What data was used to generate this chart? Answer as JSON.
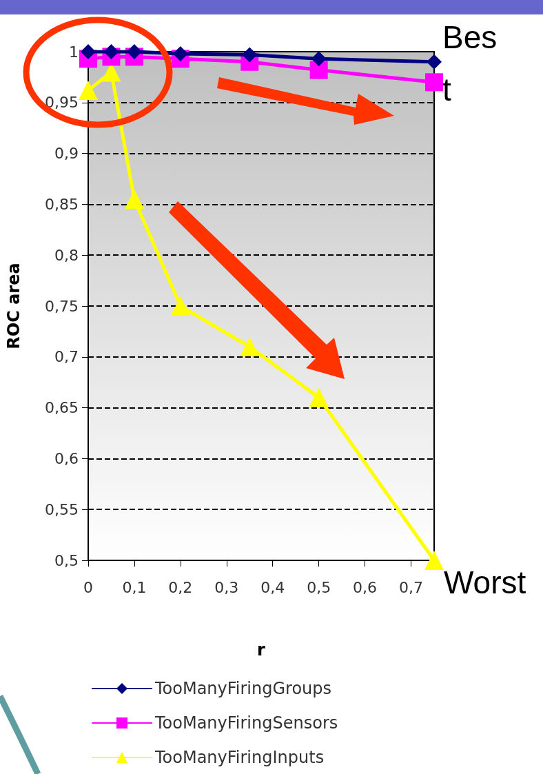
{
  "chart_data": {
    "type": "line",
    "xlabel": "r",
    "ylabel": "ROC area",
    "xlim": [
      0,
      0.75
    ],
    "ylim": [
      0.5,
      1
    ],
    "xticks": [
      0,
      {
        "value": 0.1,
        "label": "0,1"
      },
      {
        "value": 0.2,
        "label": "0,2"
      },
      {
        "value": 0.3,
        "label": "0,3"
      },
      {
        "value": 0.4,
        "label": "0,4"
      },
      {
        "value": 0.5,
        "label": "0,5"
      },
      {
        "value": 0.6,
        "label": "0,6"
      },
      {
        "value": 0.7,
        "label": "0,7"
      }
    ],
    "yticks": [
      {
        "value": 0.5,
        "label": "0,5"
      },
      {
        "value": 0.55,
        "label": "0,55"
      },
      {
        "value": 0.6,
        "label": "0,6"
      },
      {
        "value": 0.65,
        "label": "0,65"
      },
      {
        "value": 0.7,
        "label": "0,7"
      },
      {
        "value": 0.75,
        "label": "0,75"
      },
      {
        "value": 0.8,
        "label": "0,8"
      },
      {
        "value": 0.85,
        "label": "0,85"
      },
      {
        "value": 0.9,
        "label": "0,9"
      },
      {
        "value": 0.95,
        "label": "0,95"
      },
      1
    ],
    "grid": "y",
    "legend": "bottom",
    "line_style": "solid",
    "x": [
      0,
      0.05,
      0.1,
      0.2,
      0.35,
      0.5,
      0.75
    ],
    "series": [
      {
        "name": "TooManyFiringGroups",
        "color": "#000080",
        "marker": "diamond",
        "values": [
          1,
          1,
          1,
          0.998,
          0.997,
          0.993,
          0.99
        ]
      },
      {
        "name": "TooManyFiringSensors",
        "color": "#ff00ff",
        "marker": "square",
        "values": [
          0.993,
          0.995,
          0.995,
          0.993,
          0.99,
          0.982,
          0.97
        ]
      },
      {
        "name": "TooManyFiringInputs",
        "color": "#ffff00",
        "marker": "triangle",
        "values": [
          0.962,
          0.98,
          0.855,
          0.75,
          0.71,
          0.66,
          0.5
        ]
      }
    ],
    "annotations": [
      {
        "text": "Best",
        "x": 0.75,
        "y": 0.99
      },
      {
        "text": "Worst",
        "x": 0.75,
        "y": 0.5
      }
    ]
  }
}
